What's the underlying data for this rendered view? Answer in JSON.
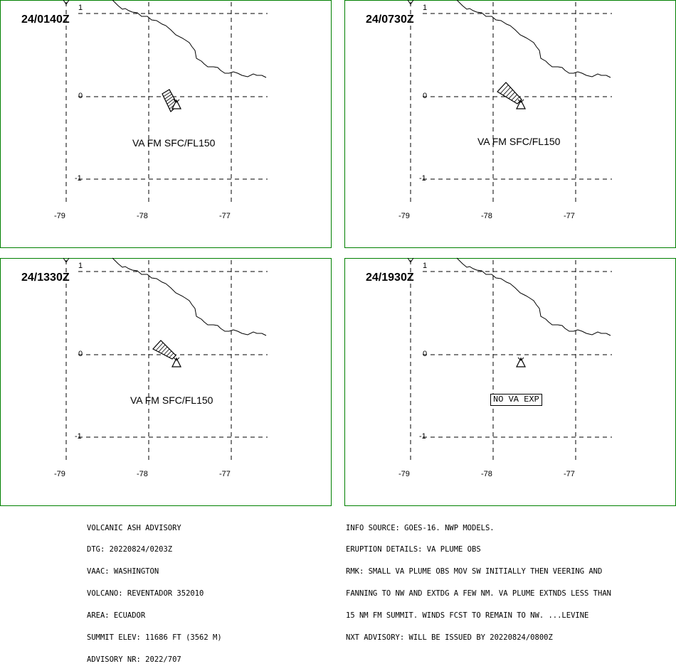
{
  "colors": {
    "frame": "#008000",
    "ink": "#000000",
    "background": "#ffffff"
  },
  "panels": [
    {
      "id": "p1",
      "time": "24/0140Z",
      "label": "VA FM SFC/FL150",
      "label_boxed": false,
      "lon_ticks": [
        "-79",
        "-78",
        "-77"
      ],
      "lat_ticks": [
        "1",
        "0",
        "-1"
      ]
    },
    {
      "id": "p2",
      "time": "24/0730Z",
      "label": "VA FM SFC/FL150",
      "label_boxed": false,
      "lon_ticks": [
        "-79",
        "-78",
        "-77"
      ],
      "lat_ticks": [
        "1",
        "0",
        "-1"
      ]
    },
    {
      "id": "p3",
      "time": "24/1330Z",
      "label": "VA FM SFC/FL150",
      "label_boxed": false,
      "lon_ticks": [
        "-79",
        "-78",
        "-77"
      ],
      "lat_ticks": [
        "1",
        "0",
        "-1"
      ]
    },
    {
      "id": "p4",
      "time": "24/1930Z",
      "label": "NO VA EXP",
      "label_boxed": true,
      "lon_ticks": [
        "-79",
        "-78",
        "-77"
      ],
      "lat_ticks": [
        "1",
        "0",
        "-1"
      ]
    }
  ],
  "advisory": {
    "lines": [
      "VOLCANIC ASH ADVISORY",
      "DTG: 20220824/0203Z",
      "VAAC: WASHINGTON",
      "VOLCANO: REVENTADOR 352010",
      "AREA: ECUADOR",
      "SUMMIT ELEV: 11686 FT (3562 M)",
      "ADVISORY NR: 2022/707"
    ]
  },
  "details": {
    "lines": [
      "INFO SOURCE: GOES-16. NWP MODELS.",
      "ERUPTION DETAILS: VA PLUME OBS",
      "RMK: SMALL VA PLUME OBS MOV SW INITIALLY THEN VEERING AND",
      "FANNING TO NW AND EXTDG A FEW NM. VA PLUME EXTNDS LESS THAN",
      "15 NM FM SUMMIT. WINDS FCST TO REMAIN TO NW. ...LEVINE",
      "NXT ADVISORY: WILL BE ISSUED BY 20220824/0800Z"
    ]
  }
}
